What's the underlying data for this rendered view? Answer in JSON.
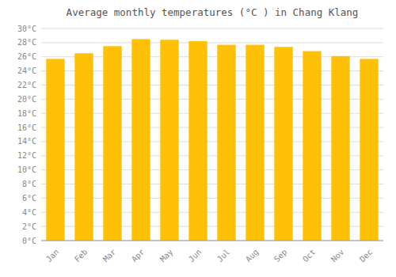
{
  "chart_data": {
    "type": "bar",
    "title": "Average monthly temperatures (°C ) in Chang Klang",
    "categories": [
      "Jan",
      "Feb",
      "Mar",
      "Apr",
      "May",
      "Jun",
      "Jul",
      "Aug",
      "Sep",
      "Oct",
      "Nov",
      "Dec"
    ],
    "values": [
      25.7,
      26.5,
      27.5,
      28.5,
      28.4,
      28.2,
      27.7,
      27.7,
      27.4,
      26.8,
      26.1,
      25.7
    ],
    "color": "#FFC107",
    "ylim": [
      0,
      30
    ],
    "yticks": [
      {
        "value": 0,
        "label": "0°C"
      },
      {
        "value": 2,
        "label": "2°C"
      },
      {
        "value": 4,
        "label": "4°C"
      },
      {
        "value": 6,
        "label": "6°C"
      },
      {
        "value": 8,
        "label": "8°C"
      },
      {
        "value": 10,
        "label": "10°C"
      },
      {
        "value": 12,
        "label": "12°C"
      },
      {
        "value": 14,
        "label": "14°C"
      },
      {
        "value": 16,
        "label": "16°C"
      },
      {
        "value": 18,
        "label": "18°C"
      },
      {
        "value": 20,
        "label": "20°C"
      },
      {
        "value": 22,
        "label": "22°C"
      },
      {
        "value": 24,
        "label": "24°C"
      },
      {
        "value": 26,
        "label": "26°C"
      },
      {
        "value": 28,
        "label": "28°C"
      },
      {
        "value": 30,
        "label": "30°C"
      }
    ],
    "grid": true
  }
}
